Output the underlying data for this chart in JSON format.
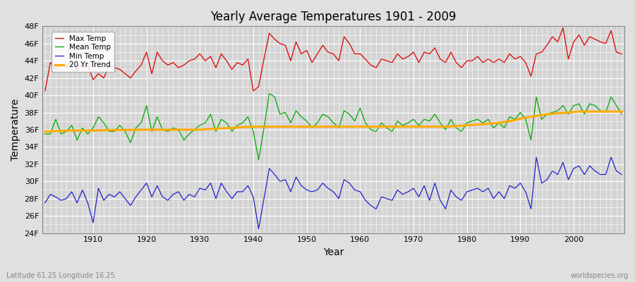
{
  "title": "Yearly Average Temperatures 1901 - 2009",
  "xlabel": "Year",
  "ylabel": "Temperature",
  "subtitle_left": "Latitude 61.25 Longitude 16.25",
  "subtitle_right": "worldspecies.org",
  "years": [
    1901,
    1902,
    1903,
    1904,
    1905,
    1906,
    1907,
    1908,
    1909,
    1910,
    1911,
    1912,
    1913,
    1914,
    1915,
    1916,
    1917,
    1918,
    1919,
    1920,
    1921,
    1922,
    1923,
    1924,
    1925,
    1926,
    1927,
    1928,
    1929,
    1930,
    1931,
    1932,
    1933,
    1934,
    1935,
    1936,
    1937,
    1938,
    1939,
    1940,
    1941,
    1942,
    1943,
    1944,
    1945,
    1946,
    1947,
    1948,
    1949,
    1950,
    1951,
    1952,
    1953,
    1954,
    1955,
    1956,
    1957,
    1958,
    1959,
    1960,
    1961,
    1962,
    1963,
    1964,
    1965,
    1966,
    1967,
    1968,
    1969,
    1970,
    1971,
    1972,
    1973,
    1974,
    1975,
    1976,
    1977,
    1978,
    1979,
    1980,
    1981,
    1982,
    1983,
    1984,
    1985,
    1986,
    1987,
    1988,
    1989,
    1990,
    1991,
    1992,
    1993,
    1994,
    1995,
    1996,
    1997,
    1998,
    1999,
    2000,
    2001,
    2002,
    2003,
    2004,
    2005,
    2006,
    2007,
    2008,
    2009
  ],
  "max_temp": [
    40.5,
    43.8,
    43.0,
    43.5,
    43.2,
    44.2,
    43.0,
    43.5,
    43.5,
    41.8,
    42.5,
    42.0,
    43.5,
    43.2,
    43.0,
    42.5,
    42.0,
    42.8,
    43.5,
    45.0,
    42.5,
    45.0,
    44.0,
    43.5,
    43.8,
    43.2,
    43.5,
    44.0,
    44.2,
    44.8,
    44.0,
    44.5,
    43.2,
    44.8,
    44.0,
    43.0,
    43.8,
    43.5,
    44.2,
    40.5,
    41.0,
    44.2,
    47.2,
    46.5,
    46.0,
    45.8,
    44.0,
    46.2,
    44.8,
    45.2,
    43.8,
    44.8,
    45.8,
    45.0,
    44.8,
    44.0,
    46.8,
    46.0,
    44.8,
    44.8,
    44.2,
    43.5,
    43.2,
    44.2,
    44.0,
    43.8,
    44.8,
    44.2,
    44.5,
    45.0,
    43.8,
    45.0,
    44.8,
    45.5,
    44.2,
    43.8,
    45.0,
    43.8,
    43.2,
    44.0,
    44.0,
    44.5,
    43.8,
    44.2,
    43.8,
    44.2,
    43.8,
    44.8,
    44.2,
    44.5,
    43.8,
    42.2,
    44.8,
    45.0,
    45.8,
    46.8,
    46.2,
    47.8,
    44.2,
    46.2,
    47.0,
    45.8,
    46.8,
    46.5,
    46.2,
    46.0,
    47.5,
    45.0,
    44.8
  ],
  "mean_temp": [
    35.5,
    35.5,
    37.2,
    35.5,
    35.8,
    36.5,
    34.8,
    36.2,
    35.5,
    36.2,
    37.5,
    36.8,
    35.8,
    35.8,
    36.5,
    35.8,
    34.5,
    36.2,
    36.8,
    38.8,
    35.8,
    37.5,
    36.0,
    35.8,
    36.2,
    36.0,
    34.8,
    35.5,
    36.0,
    36.5,
    36.8,
    37.8,
    35.8,
    37.2,
    36.8,
    35.8,
    36.5,
    36.8,
    37.5,
    35.8,
    32.5,
    36.2,
    40.2,
    39.8,
    37.8,
    38.0,
    36.8,
    38.2,
    37.5,
    37.0,
    36.2,
    36.8,
    37.8,
    37.5,
    36.8,
    36.2,
    38.2,
    37.8,
    37.0,
    38.5,
    36.8,
    36.0,
    35.8,
    36.8,
    36.2,
    35.8,
    37.0,
    36.5,
    36.8,
    37.2,
    36.5,
    37.2,
    37.0,
    37.8,
    36.8,
    36.0,
    37.2,
    36.2,
    35.8,
    36.8,
    37.0,
    37.2,
    36.8,
    37.2,
    36.2,
    36.8,
    36.2,
    37.5,
    37.2,
    38.0,
    37.2,
    34.8,
    39.8,
    37.2,
    37.8,
    38.0,
    38.2,
    38.8,
    37.8,
    38.8,
    39.0,
    37.8,
    39.0,
    38.8,
    38.2,
    38.0,
    39.8,
    38.8,
    37.8
  ],
  "min_temp": [
    27.5,
    28.5,
    28.2,
    27.8,
    28.0,
    28.8,
    27.5,
    29.0,
    27.5,
    25.2,
    29.2,
    27.8,
    28.5,
    28.2,
    28.8,
    28.0,
    27.2,
    28.2,
    29.0,
    29.8,
    28.2,
    29.5,
    28.2,
    27.8,
    28.5,
    28.8,
    27.8,
    28.5,
    28.2,
    29.2,
    29.0,
    29.8,
    28.0,
    29.8,
    28.8,
    28.0,
    28.8,
    28.8,
    29.5,
    28.2,
    24.5,
    28.0,
    31.5,
    30.8,
    30.0,
    30.2,
    28.8,
    30.5,
    29.5,
    29.0,
    28.8,
    29.0,
    29.8,
    29.2,
    28.8,
    28.0,
    30.2,
    29.8,
    29.0,
    28.8,
    27.8,
    27.2,
    26.8,
    28.2,
    28.0,
    27.8,
    29.0,
    28.5,
    28.8,
    29.2,
    28.2,
    29.5,
    27.8,
    29.8,
    27.8,
    26.8,
    29.0,
    28.2,
    27.8,
    28.8,
    29.0,
    29.2,
    28.8,
    29.2,
    28.0,
    28.8,
    28.0,
    29.5,
    29.2,
    29.8,
    28.8,
    26.8,
    32.8,
    29.8,
    30.2,
    31.2,
    30.8,
    32.2,
    30.2,
    31.5,
    31.8,
    30.8,
    31.8,
    31.2,
    30.8,
    30.8,
    32.8,
    31.2,
    30.8
  ],
  "trend": [
    35.8,
    35.82,
    35.84,
    35.86,
    35.88,
    35.9,
    35.9,
    35.9,
    35.9,
    35.9,
    35.92,
    35.94,
    35.96,
    35.96,
    35.96,
    35.98,
    35.98,
    35.98,
    36.0,
    36.0,
    36.0,
    36.0,
    36.0,
    36.0,
    36.0,
    36.0,
    36.0,
    36.0,
    36.0,
    36.0,
    36.05,
    36.08,
    36.1,
    36.15,
    36.18,
    36.2,
    36.25,
    36.3,
    36.32,
    36.35,
    36.35,
    36.35,
    36.35,
    36.35,
    36.35,
    36.35,
    36.35,
    36.35,
    36.35,
    36.35,
    36.35,
    36.35,
    36.35,
    36.35,
    36.35,
    36.35,
    36.35,
    36.35,
    36.35,
    36.35,
    36.35,
    36.35,
    36.35,
    36.35,
    36.35,
    36.35,
    36.35,
    36.35,
    36.35,
    36.35,
    36.35,
    36.35,
    36.35,
    36.35,
    36.35,
    36.35,
    36.38,
    36.42,
    36.46,
    36.52,
    36.55,
    36.6,
    36.65,
    36.7,
    36.75,
    36.8,
    36.9,
    37.0,
    37.1,
    37.3,
    37.4,
    37.5,
    37.6,
    37.7,
    37.8,
    37.85,
    37.9,
    37.95,
    38.0,
    38.05,
    38.1,
    38.1,
    38.1,
    38.1,
    38.1,
    38.1,
    38.1,
    38.1,
    38.1
  ],
  "ylim": [
    24,
    48
  ],
  "yticks": [
    24,
    26,
    28,
    30,
    32,
    34,
    36,
    38,
    40,
    42,
    44,
    46,
    48
  ],
  "ytick_labels": [
    "24F",
    "26F",
    "28F",
    "30F",
    "32F",
    "34F",
    "36F",
    "38F",
    "40F",
    "42F",
    "44F",
    "46F",
    "48F"
  ],
  "xticks": [
    1910,
    1920,
    1930,
    1940,
    1950,
    1960,
    1970,
    1980,
    1990,
    2000
  ],
  "color_max": "#dd0000",
  "color_mean": "#00aa00",
  "color_min": "#2222cc",
  "color_trend": "#ffaa00",
  "bg_color": "#e0e0e0",
  "plot_bg": "#d4d4d4",
  "grid_color": "#ffffff",
  "legend_labels": [
    "Max Temp",
    "Mean Temp",
    "Min Temp",
    "20 Yr Trend"
  ]
}
